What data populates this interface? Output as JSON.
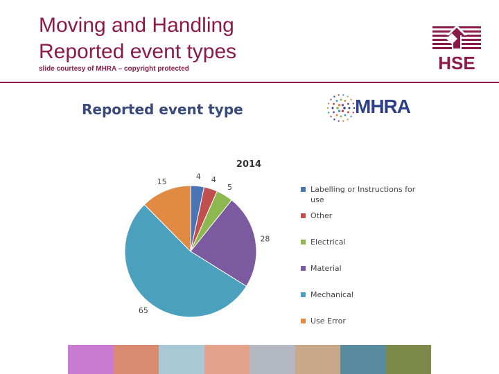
{
  "header": {
    "title_line1": "Moving and Handling",
    "title_line2": "Reported event types",
    "subtitle": "slide courtesy of MHRA – copyright protected",
    "logo_text": "HSE"
  },
  "slide_image": {
    "heading": "Reported event type",
    "logo_text": "MHRA"
  },
  "colors": {
    "brand": "#8b1a4a",
    "Labelling": "#4a74b4",
    "Other": "#c0504d",
    "Electrical": "#8db84f",
    "Material": "#7b5a9f",
    "Mechanical": "#4aa0bd",
    "UseError": "#e08a43"
  },
  "chart_data": {
    "type": "pie",
    "title": "2014",
    "legend_position": "right",
    "categories": [
      "Labelling or Instructions for use",
      "Other",
      "Electrical",
      "Material",
      "Mechanical",
      "Use Error"
    ],
    "values": [
      4,
      4,
      5,
      28,
      65,
      15
    ],
    "colors": [
      "#4a74b4",
      "#c0504d",
      "#8db84f",
      "#7b5a9f",
      "#4aa0bd",
      "#e08a43"
    ],
    "start_angle_deg": 90,
    "direction": "clockwise"
  },
  "photo_strip": [
    "#c87bd0",
    "#d98a70",
    "#a8c8d6",
    "#e3a28a",
    "#b4b8c0",
    "#c7a88a",
    "#5a8ca0",
    "#7e8a4a"
  ]
}
